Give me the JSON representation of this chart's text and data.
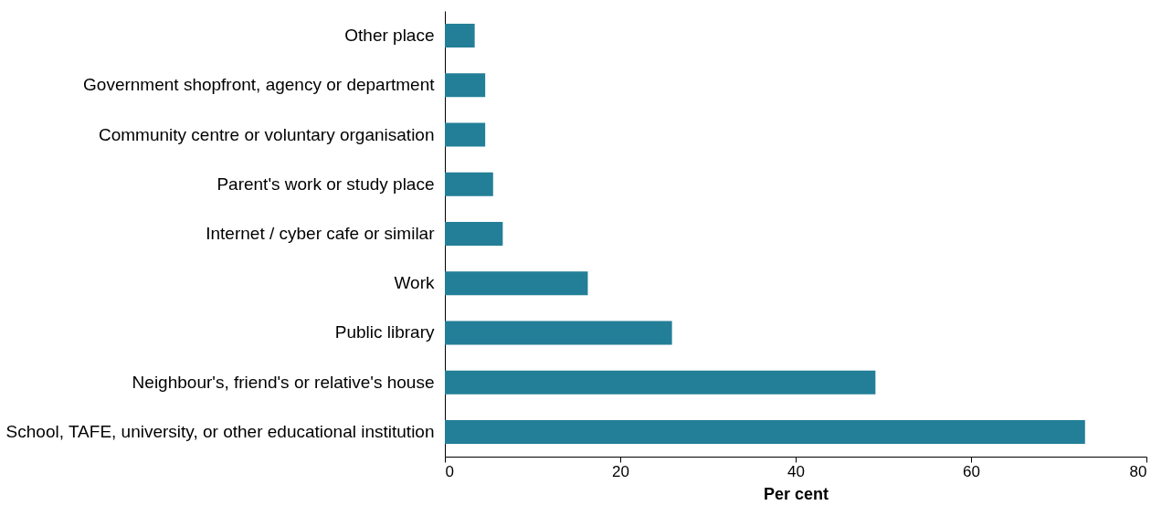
{
  "chart_data": {
    "type": "bar",
    "orientation": "horizontal",
    "xlabel": "Per cent",
    "categories": [
      "Other place",
      "Government shopfront, agency or department",
      "Community centre or voluntary organisation",
      "Parent's work or study place",
      "Internet / cyber cafe or similar",
      "Work",
      "Public library",
      "Neighbour's, friend's or relative's house",
      "School, TAFE, university, or other educational institution"
    ],
    "values": [
      3.4,
      4.6,
      4.6,
      5.5,
      6.6,
      16.3,
      25.9,
      49.1,
      73.0
    ],
    "color": "#237f97",
    "xlim": [
      0,
      80
    ],
    "xticks": [
      0,
      20,
      40,
      60,
      80
    ],
    "grid": false
  }
}
